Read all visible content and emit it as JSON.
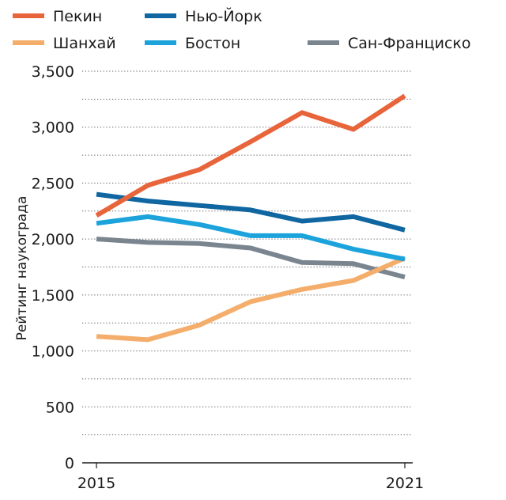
{
  "chart_data": {
    "type": "line",
    "title": "",
    "xlabel": "",
    "ylabel": "Рейтинг наукограда",
    "x": [
      2015,
      2016,
      2017,
      2018,
      2019,
      2020,
      2021
    ],
    "x_tick_labels": [
      "2015",
      "2021"
    ],
    "ylim": [
      0,
      3500
    ],
    "y_ticks": [
      0,
      500,
      1000,
      1500,
      2000,
      2500,
      3000,
      3500
    ],
    "y_tick_labels": [
      "0",
      "500",
      "1,000",
      "1,500",
      "2,000",
      "2,500",
      "3,000",
      "3,500"
    ],
    "grid": "horizontal dotted",
    "legend_position": "top",
    "series": [
      {
        "name": "Пекин",
        "color": "#e8643a",
        "values": [
          2210,
          2480,
          2620,
          2870,
          3130,
          2980,
          3280
        ]
      },
      {
        "name": "Нью-Йорк",
        "color": "#0f66a0",
        "values": [
          2400,
          2340,
          2300,
          2260,
          2160,
          2200,
          2080
        ]
      },
      {
        "name": "Шанхай",
        "color": "#f4ad6b",
        "values": [
          1130,
          1100,
          1230,
          1440,
          1550,
          1630,
          1830
        ]
      },
      {
        "name": "Бостон",
        "color": "#1ca3dc",
        "values": [
          2140,
          2200,
          2130,
          2030,
          2030,
          1910,
          1820
        ]
      },
      {
        "name": "Сан-Франциско",
        "color": "#7b858f",
        "values": [
          2000,
          1970,
          1960,
          1920,
          1790,
          1780,
          1660
        ]
      }
    ],
    "legend_order": [
      0,
      1,
      2,
      3,
      4
    ]
  }
}
